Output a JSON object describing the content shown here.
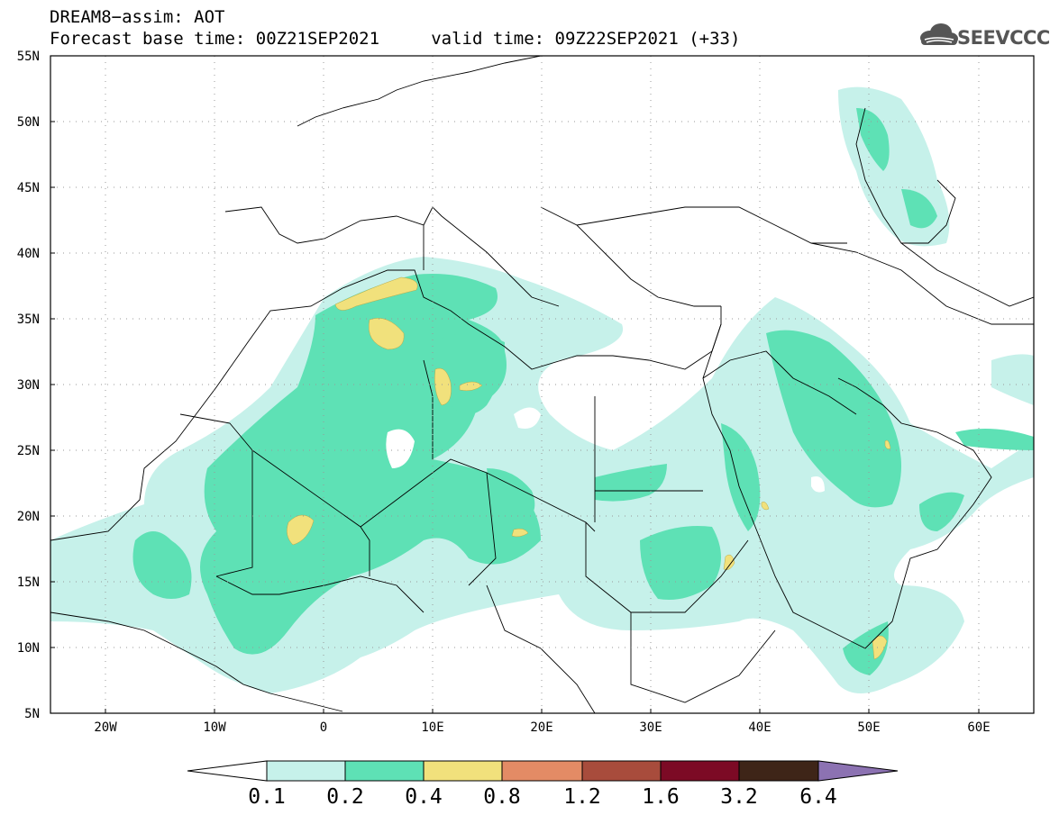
{
  "header": {
    "line1": "DREAM8−assim: AOT",
    "line2": "Forecast base time: 00Z21SEP2021     valid time: 09Z22SEP2021 (+33)"
  },
  "logo": {
    "text": "SEEVCCC",
    "icon": "cloud-icon",
    "color": "#555555"
  },
  "map": {
    "region": "North Africa, Europe, Middle East",
    "lon_range": [
      -25,
      65
    ],
    "lat_range": [
      5,
      55
    ],
    "y_ticks": [
      "55N",
      "50N",
      "45N",
      "40N",
      "35N",
      "30N",
      "25N",
      "20N",
      "15N",
      "10N",
      "5N"
    ],
    "x_ticks": [
      "20W",
      "10W",
      "0",
      "10E",
      "20E",
      "30E",
      "40E",
      "50E",
      "60E"
    ],
    "grid": "dotted"
  },
  "colorbar": {
    "labels": [
      "0.1",
      "0.2",
      "0.4",
      "0.8",
      "1.2",
      "1.6",
      "3.2",
      "6.4"
    ],
    "colors": [
      "#ffffff",
      "#c6f1ea",
      "#5ee1b5",
      "#f1e17c",
      "#e38b65",
      "#a84c3c",
      "#7c0a25",
      "#3e2518",
      "#8c72b2"
    ]
  }
}
